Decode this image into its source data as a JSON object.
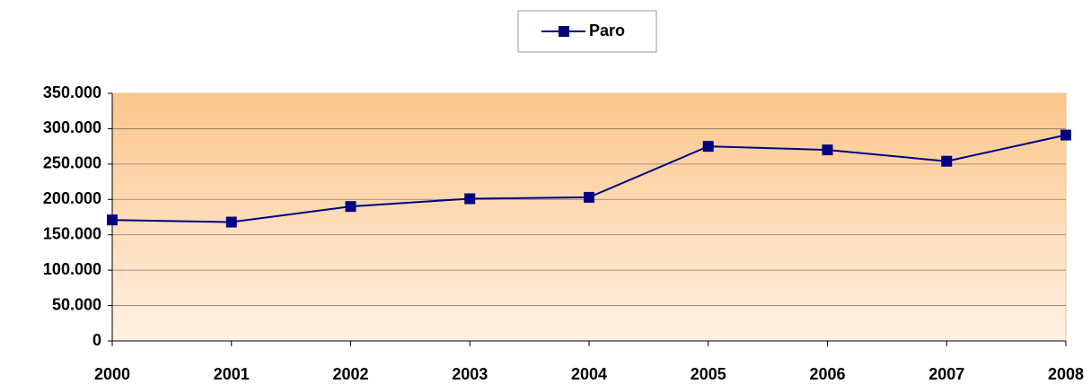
{
  "chart_data": {
    "type": "line",
    "categories": [
      "2000",
      "2001",
      "2002",
      "2003",
      "2004",
      "2005",
      "2006",
      "2007",
      "2008"
    ],
    "series": [
      {
        "name": "Paro",
        "color": "#000080",
        "values": [
          171000,
          168000,
          190000,
          201000,
          203000,
          275000,
          270000,
          254000,
          291000
        ]
      }
    ],
    "ylim": [
      0,
      350000
    ],
    "yticks": [
      0,
      {
        "value": 50000,
        "label": "50.000"
      },
      {
        "value": 100000,
        "label": "100.000"
      },
      {
        "value": 150000,
        "label": "150.000"
      },
      {
        "value": 200000,
        "label": "200.000"
      },
      {
        "value": 250000,
        "label": "250.000"
      },
      {
        "value": 300000,
        "label": "300.000"
      },
      {
        "value": 350000,
        "label": "350.000"
      }
    ],
    "grid": true,
    "legend": "top"
  }
}
